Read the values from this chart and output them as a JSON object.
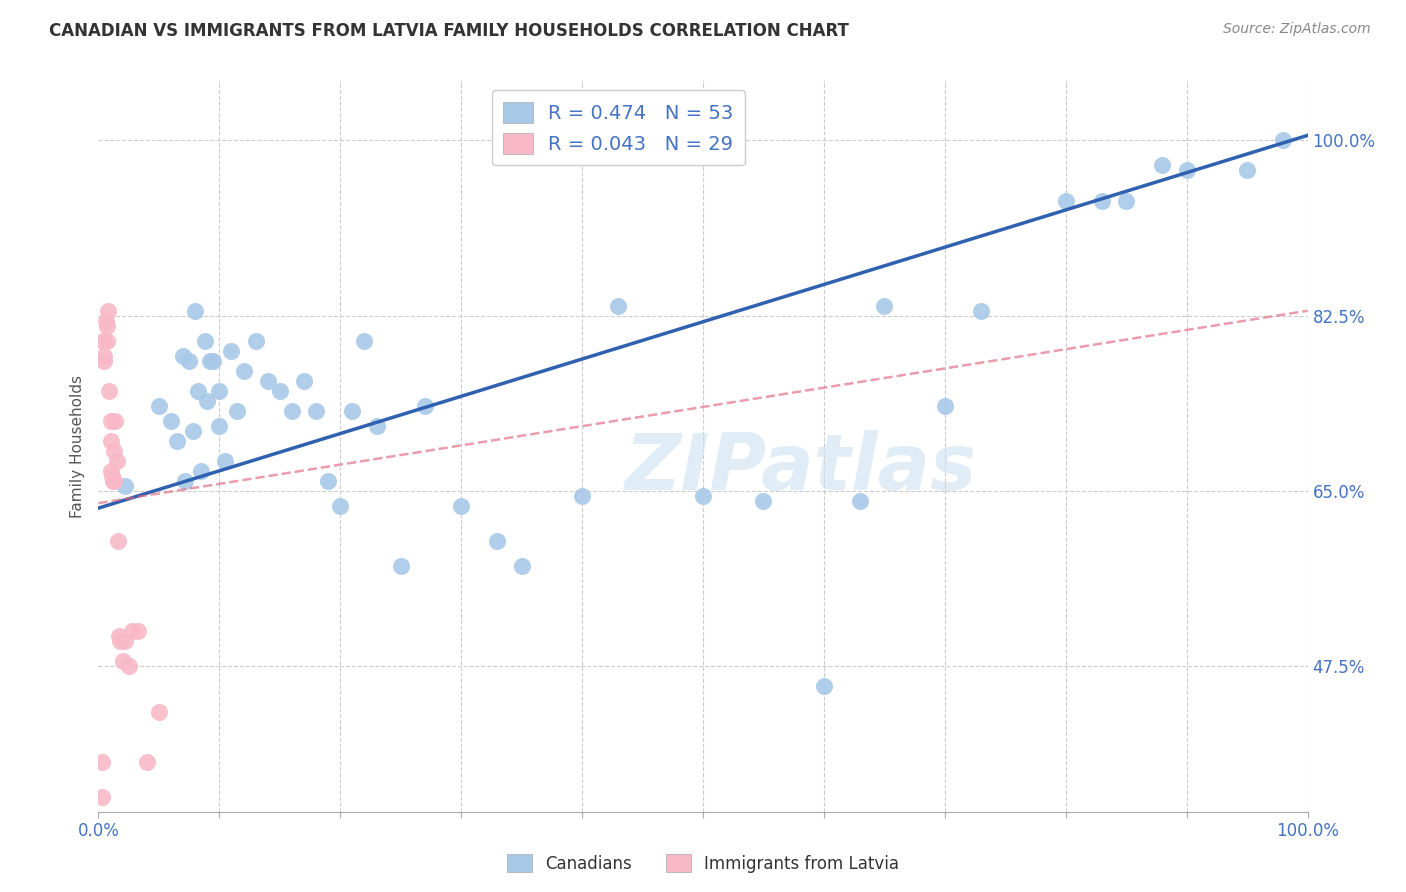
{
  "title": "CANADIAN VS IMMIGRANTS FROM LATVIA FAMILY HOUSEHOLDS CORRELATION CHART",
  "source": "Source: ZipAtlas.com",
  "ylabel": "Family Households",
  "xlim": [
    0,
    1.0
  ],
  "ylim": [
    0.33,
    1.06
  ],
  "y_tick_labels": [
    "47.5%",
    "65.0%",
    "82.5%",
    "100.0%"
  ],
  "y_tick_values": [
    0.475,
    0.65,
    0.825,
    1.0
  ],
  "legend_r_canadian": "R = 0.474",
  "legend_n_canadian": "N = 53",
  "legend_r_latvia": "R = 0.043",
  "legend_n_latvia": "N = 29",
  "canadian_color": "#a8c8e8",
  "latvian_color": "#f8b8c8",
  "canadian_line_color": "#3060b0",
  "latvian_line_color": "#e06880",
  "watermark_text": "ZIPatlas",
  "canadians_scatter_x": [
    0.022,
    0.05,
    0.06,
    0.065,
    0.07,
    0.072,
    0.075,
    0.078,
    0.08,
    0.082,
    0.085,
    0.088,
    0.09,
    0.092,
    0.095,
    0.1,
    0.1,
    0.105,
    0.11,
    0.115,
    0.12,
    0.13,
    0.14,
    0.15,
    0.16,
    0.17,
    0.18,
    0.19,
    0.2,
    0.21,
    0.22,
    0.23,
    0.25,
    0.27,
    0.3,
    0.33,
    0.35,
    0.4,
    0.43,
    0.5,
    0.55,
    0.6,
    0.63,
    0.65,
    0.7,
    0.73,
    0.8,
    0.83,
    0.85,
    0.88,
    0.9,
    0.95,
    0.98
  ],
  "canadians_scatter_y": [
    0.655,
    0.735,
    0.72,
    0.7,
    0.785,
    0.66,
    0.78,
    0.71,
    0.83,
    0.75,
    0.67,
    0.8,
    0.74,
    0.78,
    0.78,
    0.75,
    0.715,
    0.68,
    0.79,
    0.73,
    0.77,
    0.8,
    0.76,
    0.75,
    0.73,
    0.76,
    0.73,
    0.66,
    0.635,
    0.73,
    0.8,
    0.715,
    0.575,
    0.735,
    0.635,
    0.6,
    0.575,
    0.645,
    0.835,
    0.645,
    0.64,
    0.455,
    0.64,
    0.835,
    0.735,
    0.83,
    0.94,
    0.94,
    0.94,
    0.975,
    0.97,
    0.97,
    1.0
  ],
  "latvians_scatter_x": [
    0.003,
    0.003,
    0.004,
    0.005,
    0.005,
    0.006,
    0.007,
    0.007,
    0.008,
    0.009,
    0.01,
    0.01,
    0.01,
    0.011,
    0.012,
    0.013,
    0.013,
    0.014,
    0.015,
    0.016,
    0.017,
    0.018,
    0.02,
    0.022,
    0.025,
    0.028,
    0.033,
    0.04,
    0.05
  ],
  "latvians_scatter_y": [
    0.38,
    0.345,
    0.8,
    0.785,
    0.78,
    0.82,
    0.815,
    0.8,
    0.83,
    0.75,
    0.67,
    0.7,
    0.72,
    0.665,
    0.66,
    0.66,
    0.69,
    0.72,
    0.68,
    0.6,
    0.505,
    0.5,
    0.48,
    0.5,
    0.475,
    0.51,
    0.51,
    0.38,
    0.43
  ],
  "canadian_line_x": [
    0.0,
    1.0
  ],
  "canadian_line_y": [
    0.633,
    1.005
  ],
  "latvian_line_x": [
    0.0,
    1.0
  ],
  "latvian_line_y": [
    0.638,
    0.83
  ]
}
